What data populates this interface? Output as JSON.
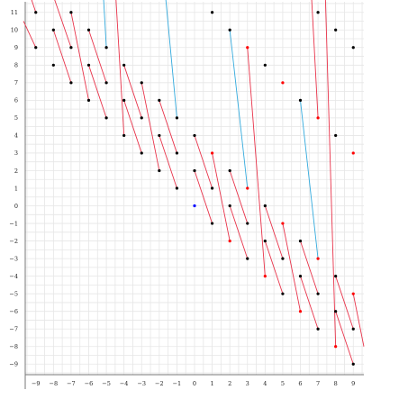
{
  "chart_data": {
    "type": "scatter",
    "title": "",
    "xlabel": "",
    "ylabel": "",
    "xlim": [
      -9.6,
      9.6
    ],
    "ylim": [
      -9.6,
      11.6
    ],
    "x_ticks": [
      -9,
      -8,
      -7,
      -6,
      -5,
      -4,
      -3,
      -2,
      -1,
      0,
      1,
      2,
      3,
      4,
      5,
      6,
      7,
      8,
      9
    ],
    "y_ticks": [
      -9,
      -8,
      -7,
      -6,
      -5,
      -4,
      -3,
      -2,
      -1,
      0,
      1,
      2,
      3,
      4,
      5,
      6,
      7,
      8,
      9,
      10,
      11
    ],
    "x_tick_labels": [
      "−9",
      "−8",
      "−7",
      "−6",
      "−5",
      "−4",
      "−3",
      "−2",
      "−1",
      "0",
      "1",
      "2",
      "3",
      "4",
      "5",
      "6",
      "7",
      "8",
      "9"
    ],
    "y_tick_labels": [
      "−9",
      "−8",
      "−7",
      "−6",
      "−5",
      "−4",
      "−3",
      "−2",
      "−1",
      "0",
      "1",
      "2",
      "3",
      "4",
      "5",
      "6",
      "7",
      "8",
      "9",
      "10",
      "11"
    ],
    "grid": true,
    "colors": {
      "black_point": "#000000",
      "red_point": "#ff0000",
      "blue_point": "#0000ff",
      "red_segment": "#e8334a",
      "cyan_segment": "#33aadd",
      "grid": "#e6e6e6",
      "axis": "#777777"
    },
    "points": [
      {
        "x": -9,
        "y": 11,
        "color": "black"
      },
      {
        "x": 1,
        "y": 11,
        "color": "black"
      },
      {
        "x": 7,
        "y": 11,
        "color": "black"
      },
      {
        "x": -9,
        "y": 9,
        "color": "black"
      },
      {
        "x": -8,
        "y": 10,
        "color": "black"
      },
      {
        "x": -7,
        "y": 11,
        "color": "black"
      },
      {
        "x": -7,
        "y": 9,
        "color": "black"
      },
      {
        "x": -6,
        "y": 10,
        "color": "black"
      },
      {
        "x": -5,
        "y": 9,
        "color": "black"
      },
      {
        "x": -8,
        "y": 8,
        "color": "black"
      },
      {
        "x": -7,
        "y": 7,
        "color": "black"
      },
      {
        "x": -6,
        "y": 8,
        "color": "black"
      },
      {
        "x": -6,
        "y": 6,
        "color": "black"
      },
      {
        "x": -5,
        "y": 7,
        "color": "black"
      },
      {
        "x": -5,
        "y": 5,
        "color": "black"
      },
      {
        "x": -4,
        "y": 8,
        "color": "black"
      },
      {
        "x": -4,
        "y": 6,
        "color": "black"
      },
      {
        "x": -4,
        "y": 4,
        "color": "black"
      },
      {
        "x": -3,
        "y": 7,
        "color": "black"
      },
      {
        "x": -3,
        "y": 5,
        "color": "black"
      },
      {
        "x": -3,
        "y": 3,
        "color": "black"
      },
      {
        "x": -2,
        "y": 6,
        "color": "black"
      },
      {
        "x": -2,
        "y": 4,
        "color": "black"
      },
      {
        "x": -2,
        "y": 2,
        "color": "black"
      },
      {
        "x": -1,
        "y": 5,
        "color": "black"
      },
      {
        "x": -1,
        "y": 3,
        "color": "black"
      },
      {
        "x": -1,
        "y": 1,
        "color": "black"
      },
      {
        "x": 0,
        "y": 4,
        "color": "black"
      },
      {
        "x": 0,
        "y": 2,
        "color": "black"
      },
      {
        "x": 0,
        "y": 0,
        "color": "blue"
      },
      {
        "x": 1,
        "y": 3,
        "color": "red"
      },
      {
        "x": 1,
        "y": 1,
        "color": "black"
      },
      {
        "x": 1,
        "y": -1,
        "color": "black"
      },
      {
        "x": 2,
        "y": 10,
        "color": "black"
      },
      {
        "x": 2,
        "y": 2,
        "color": "black"
      },
      {
        "x": 2,
        "y": 0,
        "color": "black"
      },
      {
        "x": 2,
        "y": -2,
        "color": "red"
      },
      {
        "x": 3,
        "y": 9,
        "color": "red"
      },
      {
        "x": 3,
        "y": 1,
        "color": "red"
      },
      {
        "x": 3,
        "y": -1,
        "color": "black"
      },
      {
        "x": 3,
        "y": -3,
        "color": "black"
      },
      {
        "x": 4,
        "y": 8,
        "color": "black"
      },
      {
        "x": 4,
        "y": 0,
        "color": "black"
      },
      {
        "x": 4,
        "y": -2,
        "color": "black"
      },
      {
        "x": 4,
        "y": -4,
        "color": "red"
      },
      {
        "x": 5,
        "y": 7,
        "color": "red"
      },
      {
        "x": 5,
        "y": -1,
        "color": "red"
      },
      {
        "x": 5,
        "y": -3,
        "color": "black"
      },
      {
        "x": 5,
        "y": -5,
        "color": "black"
      },
      {
        "x": 6,
        "y": 6,
        "color": "black"
      },
      {
        "x": 6,
        "y": -2,
        "color": "black"
      },
      {
        "x": 6,
        "y": -4,
        "color": "black"
      },
      {
        "x": 6,
        "y": -6,
        "color": "red"
      },
      {
        "x": 7,
        "y": 5,
        "color": "red"
      },
      {
        "x": 7,
        "y": -3,
        "color": "red"
      },
      {
        "x": 7,
        "y": -5,
        "color": "black"
      },
      {
        "x": 7,
        "y": -7,
        "color": "black"
      },
      {
        "x": 8,
        "y": 10,
        "color": "black"
      },
      {
        "x": 8,
        "y": 4,
        "color": "black"
      },
      {
        "x": 8,
        "y": -4,
        "color": "black"
      },
      {
        "x": 8,
        "y": -6,
        "color": "black"
      },
      {
        "x": 8,
        "y": -8,
        "color": "red"
      },
      {
        "x": 9,
        "y": 9,
        "color": "black"
      },
      {
        "x": 9,
        "y": 3,
        "color": "red"
      },
      {
        "x": 9,
        "y": -5,
        "color": "red"
      },
      {
        "x": 9,
        "y": -7,
        "color": "black"
      },
      {
        "x": 9,
        "y": -9,
        "color": "black"
      }
    ],
    "segments": [
      {
        "x1": -9.5,
        "y1": 12.5,
        "x2": -9,
        "y2": 11,
        "color": "red"
      },
      {
        "x1": -9.7,
        "y1": 10.5,
        "x2": -9,
        "y2": 9,
        "color": "red"
      },
      {
        "x1": -8.2,
        "y1": 12.5,
        "x2": -7,
        "y2": 9,
        "color": "red"
      },
      {
        "x1": -8,
        "y1": 10,
        "x2": -7,
        "y2": 7,
        "color": "red"
      },
      {
        "x1": -7,
        "y1": 11,
        "x2": -6,
        "y2": 6,
        "color": "red"
      },
      {
        "x1": -6,
        "y1": 10,
        "x2": -5,
        "y2": 7,
        "color": "red"
      },
      {
        "x1": -6,
        "y1": 8,
        "x2": -5,
        "y2": 5,
        "color": "red"
      },
      {
        "x1": -5.2,
        "y1": 12.5,
        "x2": -5,
        "y2": 9,
        "color": "cyan"
      },
      {
        "x1": -4.5,
        "y1": 12.5,
        "x2": -4,
        "y2": 4,
        "color": "red"
      },
      {
        "x1": -4,
        "y1": 8,
        "x2": -3,
        "y2": 5,
        "color": "red"
      },
      {
        "x1": -4,
        "y1": 6,
        "x2": -3,
        "y2": 3,
        "color": "red"
      },
      {
        "x1": -3,
        "y1": 7,
        "x2": -2,
        "y2": 2,
        "color": "red"
      },
      {
        "x1": -2,
        "y1": 6,
        "x2": -1,
        "y2": 3,
        "color": "red"
      },
      {
        "x1": -2,
        "y1": 4,
        "x2": -1,
        "y2": 1,
        "color": "red"
      },
      {
        "x1": -1.7,
        "y1": 12.5,
        "x2": -1,
        "y2": 5,
        "color": "cyan"
      },
      {
        "x1": 0,
        "y1": 4,
        "x2": 1,
        "y2": 1,
        "color": "red"
      },
      {
        "x1": 0,
        "y1": 2,
        "x2": 1,
        "y2": -1,
        "color": "red"
      },
      {
        "x1": 1,
        "y1": 3,
        "x2": 2,
        "y2": -2,
        "color": "red"
      },
      {
        "x1": 2,
        "y1": 10,
        "x2": 3,
        "y2": 1,
        "color": "cyan"
      },
      {
        "x1": 2,
        "y1": 2,
        "x2": 3,
        "y2": -1,
        "color": "red"
      },
      {
        "x1": 2,
        "y1": 0,
        "x2": 3,
        "y2": -3,
        "color": "red"
      },
      {
        "x1": 3,
        "y1": 9,
        "x2": 4,
        "y2": -4,
        "color": "red"
      },
      {
        "x1": 4,
        "y1": 0,
        "x2": 5,
        "y2": -3,
        "color": "red"
      },
      {
        "x1": 4,
        "y1": -2,
        "x2": 5,
        "y2": -5,
        "color": "red"
      },
      {
        "x1": 5,
        "y1": -1,
        "x2": 6,
        "y2": -6,
        "color": "red"
      },
      {
        "x1": 6,
        "y1": 6,
        "x2": 7,
        "y2": -3,
        "color": "cyan"
      },
      {
        "x1": 6,
        "y1": -2,
        "x2": 7,
        "y2": -5,
        "color": "red"
      },
      {
        "x1": 6,
        "y1": -4,
        "x2": 7,
        "y2": -7,
        "color": "red"
      },
      {
        "x1": 6.6,
        "y1": 12.5,
        "x2": 7,
        "y2": 5,
        "color": "red"
      },
      {
        "x1": 7.4,
        "y1": 12.5,
        "x2": 8,
        "y2": -8,
        "color": "red"
      },
      {
        "x1": 8,
        "y1": -4,
        "x2": 9,
        "y2": -7,
        "color": "red"
      },
      {
        "x1": 8,
        "y1": -6,
        "x2": 9,
        "y2": -9,
        "color": "red"
      },
      {
        "x1": 9,
        "y1": -5,
        "x2": 9.6,
        "y2": -8,
        "color": "red"
      }
    ]
  }
}
